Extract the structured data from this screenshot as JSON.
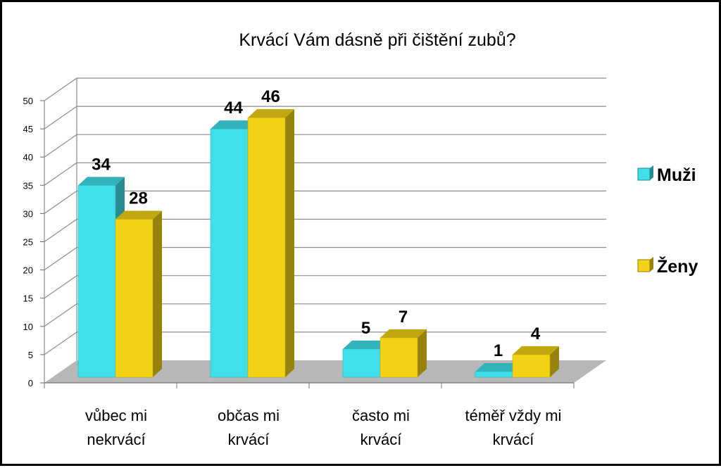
{
  "chart_data": {
    "type": "bar",
    "title": "Krvácí Vám dásně při čištění zubů?",
    "categories": [
      "vůbec mi nekrvácí",
      "občas mi krvácí",
      "často mi krvácí",
      "téměř vždy mi krvácí"
    ],
    "category_lines": [
      [
        "vůbec mi",
        "nekrvácí"
      ],
      [
        "občas mi",
        "krvácí"
      ],
      [
        "často mi",
        "krvácí"
      ],
      [
        "téměř vždy mi",
        "krvácí"
      ]
    ],
    "series": [
      {
        "name": "Muži",
        "values": [
          34,
          44,
          5,
          1
        ],
        "color": "#3fe0ea"
      },
      {
        "name": "Ženy",
        "values": [
          28,
          46,
          7,
          4
        ],
        "color": "#f2d214"
      }
    ],
    "ylim": [
      0,
      50
    ],
    "yticks": [
      0,
      5,
      10,
      15,
      20,
      25,
      30,
      35,
      40,
      45,
      50
    ],
    "grid": true,
    "legend": "right",
    "style": "3d-clustered-bar",
    "colors": {
      "floor": "#b7b7b7",
      "grid": "#8c8c8c"
    }
  }
}
